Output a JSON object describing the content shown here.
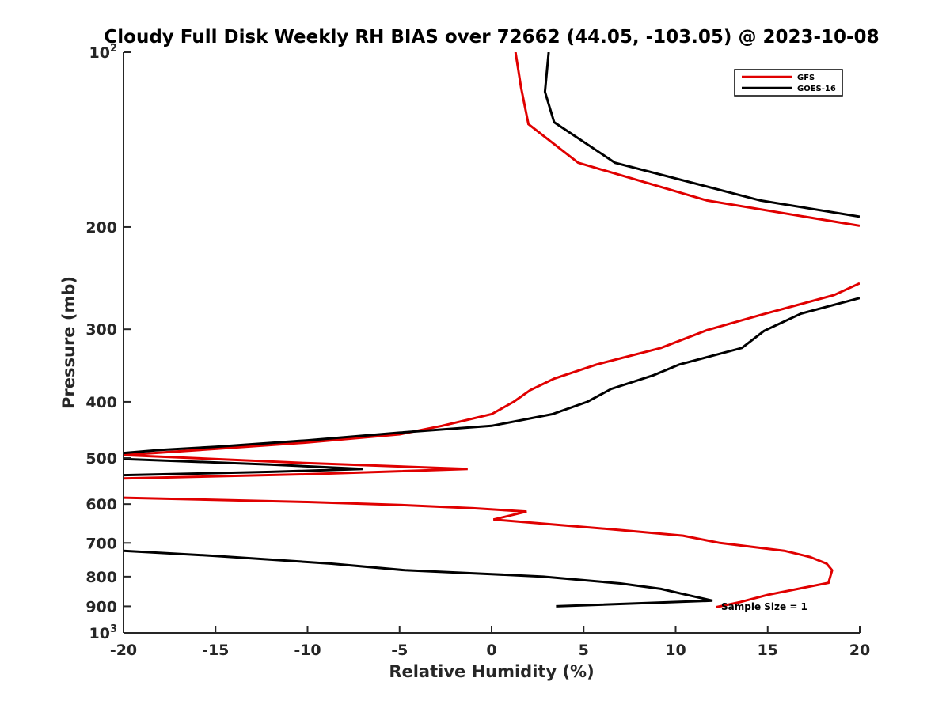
{
  "chart_data": {
    "type": "line",
    "title": "Cloudy Full Disk Weekly RH BIAS over 72662 (44.05, -103.05) @ 2023-10-08",
    "xlabel": "Relative Humidity (%)",
    "ylabel": "Pressure (mb)",
    "xlim": [
      -20,
      20
    ],
    "ylim": [
      100,
      1000
    ],
    "y_scale": "log",
    "y_reversed": true,
    "grid": false,
    "legend_position": "top-right",
    "x_ticks": [
      -20,
      -15,
      -10,
      -5,
      0,
      5,
      10,
      15,
      20
    ],
    "x_tick_labels": [
      "-20",
      "-15",
      "-10",
      "-5",
      "0",
      "5",
      "10",
      "15",
      "20"
    ],
    "y_ticks": [
      {
        "value": 100,
        "base": "10",
        "exp": "2"
      },
      {
        "value": 200,
        "label": "200"
      },
      {
        "value": 300,
        "label": "300"
      },
      {
        "value": 400,
        "label": "400"
      },
      {
        "value": 500,
        "label": "500"
      },
      {
        "value": 600,
        "label": "600"
      },
      {
        "value": 700,
        "label": "700"
      },
      {
        "value": 800,
        "label": "800"
      },
      {
        "value": 900,
        "label": "900"
      },
      {
        "value": 1000,
        "base": "10",
        "exp": "3"
      }
    ],
    "series": [
      {
        "name": "GFS",
        "color": "#e00000",
        "points": [
          [
            1.3,
            100
          ],
          [
            1.6,
            115
          ],
          [
            2.0,
            133
          ],
          [
            4.7,
            155
          ],
          [
            11.7,
            180
          ],
          [
            20.0,
            199
          ],
          [
            null,
            null
          ],
          [
            20.0,
            250
          ],
          [
            18.6,
            262
          ],
          [
            16.7,
            272
          ],
          [
            14.7,
            283
          ],
          [
            11.7,
            301
          ],
          [
            9.2,
            323
          ],
          [
            5.7,
            345
          ],
          [
            3.4,
            365
          ],
          [
            2.1,
            382
          ],
          [
            1.2,
            400
          ],
          [
            0.0,
            420
          ],
          [
            -2.7,
            440
          ],
          [
            -5.0,
            455
          ],
          [
            -10.0,
            470
          ],
          [
            -15.0,
            482
          ],
          [
            -20.0,
            494
          ],
          [
            -10.0,
            510
          ],
          [
            -1.3,
            522
          ],
          [
            -10.0,
            533
          ],
          [
            -20.0,
            542
          ],
          [
            null,
            null
          ],
          [
            -20.0,
            585
          ],
          [
            -10.0,
            595
          ],
          [
            -5.0,
            602
          ],
          [
            -1.0,
            610
          ],
          [
            1.9,
            618
          ],
          [
            0.1,
            638
          ],
          [
            5.0,
            657
          ],
          [
            7.0,
            665
          ],
          [
            10.4,
            680
          ],
          [
            12.4,
            700
          ],
          [
            15.9,
            722
          ],
          [
            17.3,
            740
          ],
          [
            18.2,
            760
          ],
          [
            18.5,
            780
          ],
          [
            18.3,
            820
          ],
          [
            15.0,
            860
          ],
          [
            13.5,
            885
          ],
          [
            12.2,
            903
          ]
        ]
      },
      {
        "name": "GOES-16",
        "color": "#000000",
        "points": [
          [
            3.1,
            100
          ],
          [
            2.9,
            117
          ],
          [
            3.4,
            132
          ],
          [
            6.7,
            155
          ],
          [
            14.6,
            180
          ],
          [
            20.0,
            192
          ],
          [
            null,
            null
          ],
          [
            20.0,
            265
          ],
          [
            16.8,
            282
          ],
          [
            14.8,
            302
          ],
          [
            13.6,
            323
          ],
          [
            10.2,
            345
          ],
          [
            8.8,
            360
          ],
          [
            6.5,
            380
          ],
          [
            5.2,
            400
          ],
          [
            3.3,
            420
          ],
          [
            0.0,
            440
          ],
          [
            -5.0,
            452
          ],
          [
            -10.0,
            466
          ],
          [
            -15.0,
            478
          ],
          [
            -18.0,
            484
          ],
          [
            -20.0,
            490
          ],
          [
            null,
            null
          ],
          [
            -20.0,
            502
          ],
          [
            -12.0,
            513
          ],
          [
            -7.0,
            522
          ],
          [
            -12.0,
            528
          ],
          [
            -20.0,
            535
          ],
          [
            null,
            null
          ],
          [
            -20.0,
            722
          ],
          [
            -15.0,
            737
          ],
          [
            -8.7,
            760
          ],
          [
            -4.7,
            780
          ],
          [
            0.0,
            792
          ],
          [
            2.8,
            800
          ],
          [
            7.0,
            822
          ],
          [
            9.2,
            840
          ],
          [
            10.6,
            860
          ],
          [
            12.0,
            880
          ],
          [
            3.5,
            900
          ]
        ]
      }
    ],
    "annotation": "Sample Size = 1"
  }
}
